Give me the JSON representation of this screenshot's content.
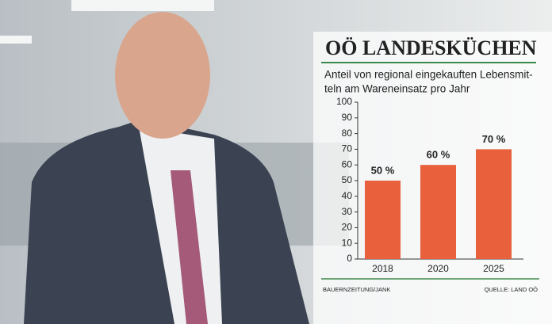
{
  "chart_data": {
    "type": "bar",
    "title": "OÖ LANDESKÜCHEN",
    "subtitle": [
      "Anteil von regional eingekauften Lebensmit-",
      "teln am Wareneinsatz pro Jahr"
    ],
    "categories": [
      "2018",
      "2020",
      "2025"
    ],
    "values": [
      50,
      60,
      70
    ],
    "value_labels": [
      "50 %",
      "60 %",
      "70 %"
    ],
    "color": "#e8603c",
    "ylim": [
      0,
      100
    ],
    "yticks": [
      0,
      10,
      20,
      30,
      40,
      50,
      60,
      70,
      80,
      90,
      100
    ],
    "grid": false,
    "credit": "BAUERNZEITUNG/JANK",
    "source": "QUELLE: LAND OÖ"
  }
}
